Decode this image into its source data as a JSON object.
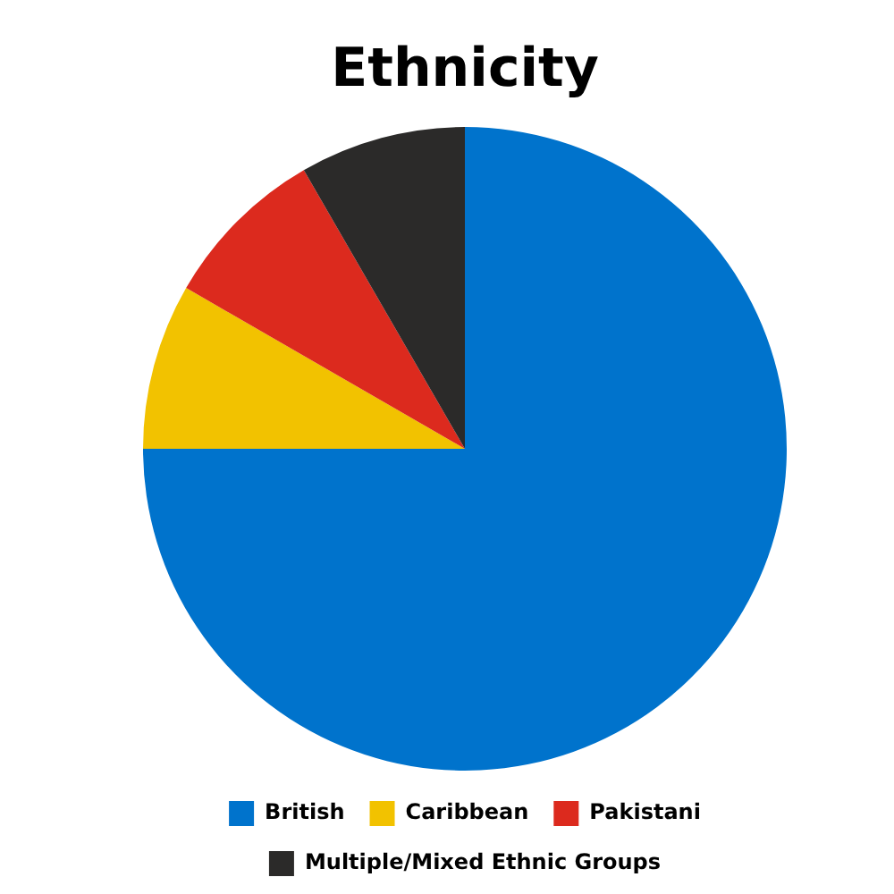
{
  "chart_data": {
    "type": "pie",
    "title": "Ethnicity",
    "categories": [
      "British",
      "Caribbean",
      "Pakistani",
      "Multiple/Mixed Ethnic Groups"
    ],
    "values": [
      75,
      8.33,
      8.33,
      8.34
    ],
    "colors": [
      "#0073cc",
      "#f2c200",
      "#dc2a1e",
      "#2b2a29"
    ],
    "legend": "bottom"
  }
}
